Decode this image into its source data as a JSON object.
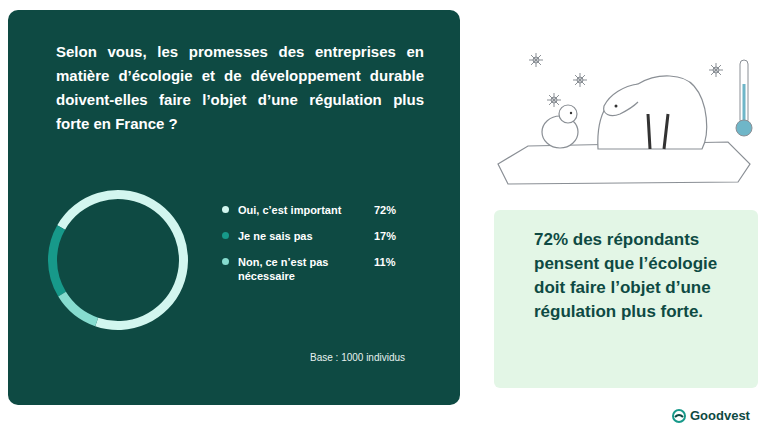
{
  "chart_data": {
    "type": "pie",
    "title": "Selon vous, les promesses des entreprises en matière d’écologie et de développement durable doivent-elles faire l’objet d’une régulation plus forte en France ?",
    "categories": [
      "Oui, c’est important",
      "Je ne sais pas",
      "Non, ce n’est pas nécessaire"
    ],
    "values": [
      72,
      17,
      11
    ],
    "value_labels": [
      "72%",
      "17%",
      "11%"
    ],
    "colors": [
      "#d2f6ef",
      "#17998a",
      "#86dccf"
    ],
    "legend": "right",
    "annotations": [
      "Base : 1000 individus"
    ]
  },
  "callout": "72% des répondants pensent que l’écologie doit faire l’objet d’une régulation plus forte.",
  "logo": "Goodvest"
}
